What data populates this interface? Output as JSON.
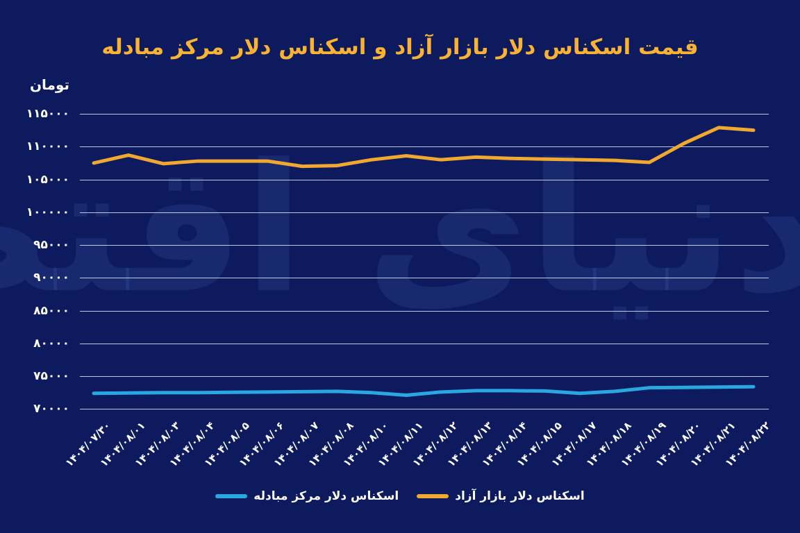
{
  "title": "قیمت اسکناس دلار بازار آزاد و اسکناس دلار مرکز مبادله",
  "unit_label": "تومان",
  "watermark": "دنیای اقتصاد",
  "colors": {
    "background": "#0d1a5d",
    "title": "#f9b233",
    "free_market_line": "#f0a830",
    "exchange_center_line": "#29a8e0",
    "gridline": "#dfe5f5",
    "axis_text": "#ffffff"
  },
  "legend": {
    "items": [
      {
        "label": "اسکناس دلار مرکز مبادله",
        "color": "#29a8e0"
      },
      {
        "label": "اسکناس دلار بازار آزاد",
        "color": "#f0a830"
      }
    ]
  },
  "chart_data": {
    "type": "line",
    "title": "قیمت اسکناس دلار بازار آزاد و اسکناس دلار مرکز مبادله",
    "xlabel": "",
    "ylabel": "تومان",
    "ylim": [
      70000,
      115000
    ],
    "grid": "horizontal",
    "legend_position": "bottom-center",
    "categories": [
      "۱۴۰۴/۰۷/۳۰",
      "۱۴۰۴/۰۸/۰۱",
      "۱۴۰۴/۰۸/۰۳",
      "۱۴۰۴/۰۸/۰۴",
      "۱۴۰۴/۰۸/۰۵",
      "۱۴۰۴/۰۸/۰۶",
      "۱۴۰۴/۰۸/۰۷",
      "۱۴۰۴/۰۸/۰۸",
      "۱۴۰۴/۰۸/۱۰",
      "۱۴۰۴/۰۸/۱۱",
      "۱۴۰۴/۰۸/۱۲",
      "۱۴۰۴/۰۸/۱۳",
      "۱۴۰۴/۰۸/۱۴",
      "۱۴۰۴/۰۸/۱۵",
      "۱۴۰۴/۰۸/۱۷",
      "۱۴۰۴/۰۸/۱۸",
      "۱۴۰۴/۰۸/۱۹",
      "۱۴۰۴/۰۸/۲۰",
      "۱۴۰۴/۰۸/۲۱",
      "۱۴۰۴/۰۸/۲۲"
    ],
    "yticks": [
      {
        "label": "۱۱۵۰۰۰",
        "value": 115000
      },
      {
        "label": "۱۱۰۰۰۰",
        "value": 110000
      },
      {
        "label": "۱۰۵۰۰۰",
        "value": 105000
      },
      {
        "label": "۱۰۰۰۰۰",
        "value": 100000
      },
      {
        "label": "۹۵۰۰۰",
        "value": 95000
      },
      {
        "label": "۹۰۰۰۰",
        "value": 90000
      },
      {
        "label": "۸۵۰۰۰",
        "value": 85000
      },
      {
        "label": "۸۰۰۰۰",
        "value": 80000
      },
      {
        "label": "۷۵۰۰۰",
        "value": 75000
      },
      {
        "label": "۷۰۰۰۰",
        "value": 70000
      }
    ],
    "series": [
      {
        "name": "اسکناس دلار بازار آزاد",
        "color": "#f0a830",
        "values": [
          107500,
          108700,
          107400,
          107800,
          107800,
          107800,
          107000,
          107100,
          108000,
          108600,
          108000,
          108400,
          108200,
          108100,
          108000,
          107900,
          107600,
          110500,
          112900,
          112500
        ]
      },
      {
        "name": "اسکناس دلار مرکز مبادله",
        "color": "#29a8e0",
        "values": [
          72400,
          72450,
          72500,
          72500,
          72550,
          72600,
          72650,
          72700,
          72500,
          72100,
          72600,
          72800,
          72800,
          72750,
          72400,
          72700,
          73250,
          73300,
          73350,
          73400
        ]
      }
    ]
  }
}
